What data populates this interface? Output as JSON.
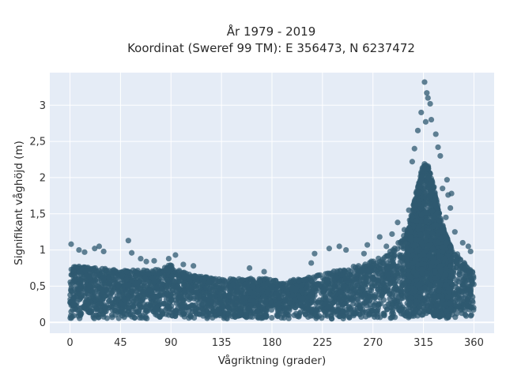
{
  "chart_data": {
    "type": "scatter",
    "title_line1": "År 1979 - 2019",
    "title_line2": "Koordinat (Sweref 99 TM): E 356473, N 6237472",
    "xlabel": "Vågriktning (grader)",
    "ylabel": "Signifikant våghöjd (m)",
    "xlim": [
      -18,
      378
    ],
    "ylim": [
      -0.15,
      3.45
    ],
    "xticks": [
      0,
      45,
      90,
      135,
      180,
      225,
      270,
      315,
      360
    ],
    "xtick_labels": [
      "0",
      "45",
      "90",
      "135",
      "180",
      "225",
      "270",
      "315",
      "360"
    ],
    "yticks": [
      0,
      0.5,
      1,
      1.5,
      2,
      2.5,
      3
    ],
    "ytick_labels": [
      "0",
      "0,5",
      "1",
      "1,5",
      "2",
      "2,5",
      "3"
    ],
    "grid": true,
    "marker_color": "#2f5a70",
    "background_color": "#e5ecf6",
    "envelope": {
      "x": [
        0,
        10,
        20,
        30,
        45,
        60,
        75,
        90,
        100,
        110,
        120,
        135,
        150,
        165,
        180,
        195,
        210,
        225,
        240,
        255,
        270,
        280,
        290,
        300,
        305,
        310,
        315,
        320,
        325,
        330,
        335,
        340,
        345,
        350,
        355,
        360
      ],
      "y_max": [
        0.75,
        0.8,
        0.75,
        0.75,
        0.72,
        0.72,
        0.72,
        0.8,
        0.7,
        0.65,
        0.63,
        0.6,
        0.6,
        0.62,
        0.6,
        0.58,
        0.62,
        0.68,
        0.72,
        0.78,
        0.85,
        0.92,
        1.05,
        1.25,
        1.55,
        1.9,
        2.2,
        2.15,
        1.85,
        1.45,
        1.2,
        1.05,
        0.95,
        0.85,
        0.75,
        0.7
      ],
      "y_min": [
        0.05,
        0.05,
        0.05,
        0.05,
        0.05,
        0.05,
        0.05,
        0.05,
        0.05,
        0.05,
        0.05,
        0.05,
        0.05,
        0.05,
        0.05,
        0.05,
        0.05,
        0.05,
        0.05,
        0.05,
        0.05,
        0.05,
        0.05,
        0.06,
        0.07,
        0.08,
        0.1,
        0.1,
        0.08,
        0.07,
        0.06,
        0.05,
        0.05,
        0.05,
        0.05,
        0.05
      ]
    },
    "outliers": [
      {
        "x": 316,
        "y": 3.32
      },
      {
        "x": 318,
        "y": 3.17
      },
      {
        "x": 319,
        "y": 3.1
      },
      {
        "x": 321,
        "y": 3.02
      },
      {
        "x": 313,
        "y": 2.9
      },
      {
        "x": 322,
        "y": 2.8
      },
      {
        "x": 317,
        "y": 2.77
      },
      {
        "x": 310,
        "y": 2.65
      },
      {
        "x": 326,
        "y": 2.6
      },
      {
        "x": 328,
        "y": 2.42
      },
      {
        "x": 307,
        "y": 2.4
      },
      {
        "x": 305,
        "y": 2.22
      },
      {
        "x": 330,
        "y": 2.3
      },
      {
        "x": 336,
        "y": 1.97
      },
      {
        "x": 332,
        "y": 1.85
      },
      {
        "x": 337,
        "y": 1.76
      },
      {
        "x": 340,
        "y": 1.78
      },
      {
        "x": 339,
        "y": 1.58
      },
      {
        "x": 335,
        "y": 1.45
      },
      {
        "x": 292,
        "y": 1.38
      },
      {
        "x": 287,
        "y": 1.22
      },
      {
        "x": 298,
        "y": 1.28
      },
      {
        "x": 302,
        "y": 1.55
      },
      {
        "x": 343,
        "y": 1.25
      },
      {
        "x": 350,
        "y": 1.1
      },
      {
        "x": 355,
        "y": 1.05
      },
      {
        "x": 357,
        "y": 0.98
      },
      {
        "x": 1,
        "y": 1.08
      },
      {
        "x": 8,
        "y": 1.0
      },
      {
        "x": 13,
        "y": 0.97
      },
      {
        "x": 22,
        "y": 1.02
      },
      {
        "x": 26,
        "y": 1.05
      },
      {
        "x": 30,
        "y": 0.98
      },
      {
        "x": 52,
        "y": 1.13
      },
      {
        "x": 55,
        "y": 0.96
      },
      {
        "x": 63,
        "y": 0.88
      },
      {
        "x": 68,
        "y": 0.84
      },
      {
        "x": 75,
        "y": 0.85
      },
      {
        "x": 88,
        "y": 0.88
      },
      {
        "x": 94,
        "y": 0.93
      },
      {
        "x": 101,
        "y": 0.8
      },
      {
        "x": 110,
        "y": 0.78
      },
      {
        "x": 160,
        "y": 0.75
      },
      {
        "x": 173,
        "y": 0.7
      },
      {
        "x": 215,
        "y": 0.82
      },
      {
        "x": 231,
        "y": 1.02
      },
      {
        "x": 240,
        "y": 1.05
      },
      {
        "x": 246,
        "y": 1.0
      },
      {
        "x": 262,
        "y": 0.95
      },
      {
        "x": 265,
        "y": 1.07
      },
      {
        "x": 276,
        "y": 1.18
      },
      {
        "x": 282,
        "y": 1.05
      },
      {
        "x": 218,
        "y": 0.95
      }
    ]
  }
}
